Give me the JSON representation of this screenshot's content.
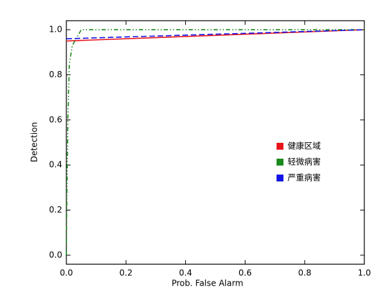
{
  "chart_data": {
    "type": "line",
    "xlabel": "Prob. False Alarm",
    "ylabel": "Detection",
    "xlim": [
      0,
      1
    ],
    "ylim": [
      -0.04,
      1.04
    ],
    "xticks": [
      {
        "value": 0,
        "label": "0.0"
      },
      {
        "value": 0.2,
        "label": "0.2"
      },
      {
        "value": 0.4,
        "label": "0.4"
      },
      {
        "value": 0.6,
        "label": "0.6"
      },
      {
        "value": 0.8,
        "label": "0.8"
      },
      {
        "value": 1,
        "label": "1.0"
      }
    ],
    "yticks": [
      {
        "value": 0,
        "label": "0.0"
      },
      {
        "value": 0.2,
        "label": "0.2"
      },
      {
        "value": 0.4,
        "label": "0.4"
      },
      {
        "value": 0.6,
        "label": "0.6"
      },
      {
        "value": 0.8,
        "label": "0.8"
      },
      {
        "value": 1,
        "label": "1.0"
      }
    ],
    "legend": "right",
    "series": [
      {
        "name": "健康区域",
        "color": "#e8141c",
        "dash": "solid",
        "x": [
          0,
          1
        ],
        "values": [
          0.95,
          1.0
        ]
      },
      {
        "name": "轻微病害",
        "color": "#1a8a1a",
        "dash": "dashdotdot",
        "x": [
          0,
          0.002,
          0.005,
          0.01,
          0.02,
          0.05,
          1
        ],
        "values": [
          0,
          0.3,
          0.6,
          0.85,
          0.93,
          1.0,
          1.0
        ]
      },
      {
        "name": "严重病害",
        "color": "#1414e8",
        "dash": "dashed",
        "x": [
          0,
          1
        ],
        "values": [
          0.96,
          1.0
        ]
      }
    ]
  }
}
